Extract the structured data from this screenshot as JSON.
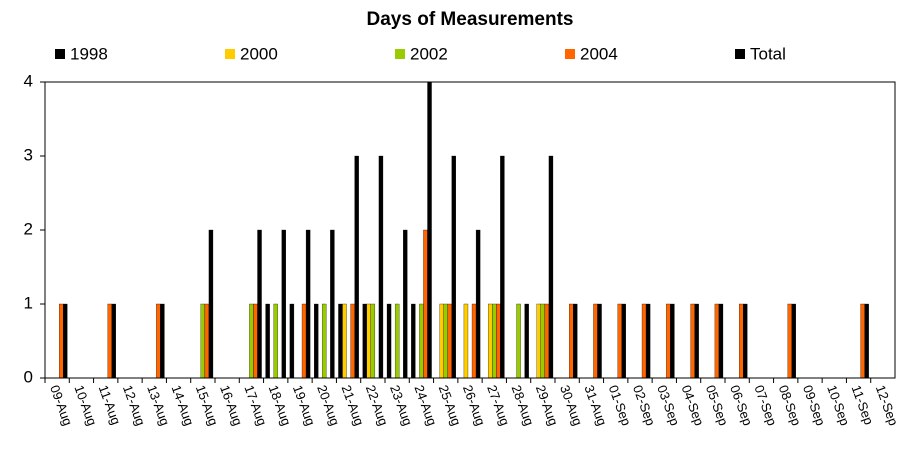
{
  "chart_data": {
    "type": "bar",
    "title": "Days of Measurements",
    "categories": [
      "09-Aug",
      "10-Aug",
      "11-Aug",
      "12-Aug",
      "13-Aug",
      "14-Aug",
      "15-Aug",
      "16-Aug",
      "17-Aug",
      "18-Aug",
      "19-Aug",
      "20-Aug",
      "21-Aug",
      "22-Aug",
      "23-Aug",
      "24-Aug",
      "25-Aug",
      "26-Aug",
      "27-Aug",
      "28-Aug",
      "29-Aug",
      "30-Aug",
      "31-Aug",
      "01-Sep",
      "02-Sep",
      "03-Sep",
      "04-Sep",
      "05-Sep",
      "06-Sep",
      "07-Sep",
      "08-Sep",
      "09-Sep",
      "10-Sep",
      "11-Sep",
      "12-Sep"
    ],
    "series": [
      {
        "name": "1998",
        "color": "#000000",
        "values": [
          null,
          null,
          null,
          null,
          null,
          null,
          null,
          null,
          null,
          1,
          1,
          1,
          1,
          1,
          1,
          1,
          null,
          null,
          null,
          null,
          null,
          null,
          null,
          null,
          null,
          null,
          null,
          null,
          null,
          null,
          null,
          null,
          null,
          null,
          null
        ]
      },
      {
        "name": "2000",
        "color": "#ffcc00",
        "values": [
          null,
          null,
          null,
          null,
          null,
          null,
          null,
          null,
          null,
          null,
          null,
          null,
          1,
          1,
          null,
          null,
          1,
          1,
          1,
          null,
          1,
          null,
          null,
          null,
          null,
          null,
          null,
          null,
          null,
          null,
          null,
          null,
          null,
          null,
          null
        ]
      },
      {
        "name": "2002",
        "color": "#99cc00",
        "values": [
          null,
          null,
          null,
          null,
          null,
          null,
          1,
          null,
          1,
          1,
          null,
          1,
          null,
          1,
          1,
          1,
          1,
          null,
          1,
          1,
          1,
          null,
          null,
          null,
          null,
          null,
          null,
          null,
          null,
          null,
          null,
          null,
          null,
          null,
          null
        ]
      },
      {
        "name": "2004",
        "color": "#ff6600",
        "values": [
          1,
          null,
          1,
          null,
          1,
          null,
          1,
          null,
          1,
          null,
          1,
          null,
          1,
          null,
          null,
          2,
          1,
          1,
          1,
          null,
          1,
          1,
          1,
          1,
          1,
          1,
          1,
          1,
          1,
          null,
          1,
          null,
          null,
          1,
          null
        ]
      },
      {
        "name": "Total",
        "color": "#000000",
        "values": [
          1,
          null,
          1,
          null,
          1,
          null,
          2,
          null,
          2,
          2,
          2,
          2,
          3,
          3,
          2,
          4,
          3,
          2,
          3,
          1,
          3,
          1,
          1,
          1,
          1,
          1,
          1,
          1,
          1,
          null,
          1,
          null,
          null,
          1,
          null
        ]
      }
    ],
    "ylim": [
      0,
      4
    ],
    "yticks": [
      0,
      1,
      2,
      3,
      4
    ],
    "legend": "top"
  }
}
